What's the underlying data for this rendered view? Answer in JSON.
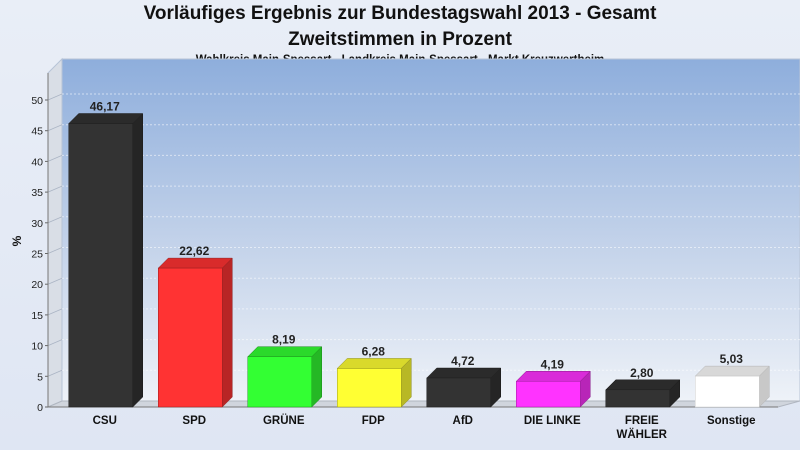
{
  "chart_data": {
    "type": "bar",
    "title": "Vorläufiges Ergebnis zur Bundestagswahl 2013 - Gesamt",
    "subtitle": "Zweitstimmen in Prozent",
    "subtitle2": "Wahlkreis Main-Spessart - Landkreis Main-Spessart - Markt Kreuzwertheim",
    "ylabel": "%",
    "ylim": [
      0,
      50
    ],
    "yticks": [
      0,
      5,
      10,
      15,
      20,
      25,
      30,
      35,
      40,
      45,
      50
    ],
    "categories": [
      "CSU",
      "SPD",
      "GRÜNE",
      "FDP",
      "AfD",
      "DIE LINKE",
      "FREIE WÄHLER",
      "Sonstige"
    ],
    "values": [
      46.17,
      22.62,
      8.19,
      6.28,
      4.72,
      4.19,
      2.8,
      5.03
    ],
    "value_labels": [
      "46,17",
      "22,62",
      "8,19",
      "6,28",
      "4,72",
      "4,19",
      "2,80",
      "5,03"
    ],
    "colors": [
      "#333333",
      "#ff3333",
      "#33ff33",
      "#ffff33",
      "#333333",
      "#ff33ff",
      "#333333",
      "#ffffff"
    ]
  }
}
